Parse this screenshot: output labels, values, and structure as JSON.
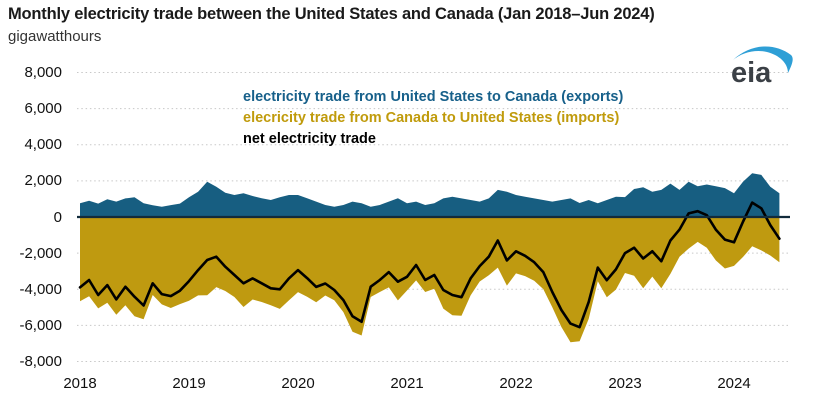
{
  "title": "Monthly electricity trade between the United States and Canada (Jan 2018–Jun 2024)",
  "subtitle": "gigawatthours",
  "logo": {
    "text": "eia",
    "swoosh_color": "#2E9FD6",
    "text_color": "#3B4046"
  },
  "legend": {
    "items": [
      {
        "label": "electricity trade from United States to Canada (exports)",
        "color": "#17608A",
        "series": "exports"
      },
      {
        "label": "elecricity trade from Canada to United States (imports)",
        "color": "#C09B0C",
        "series": "imports"
      },
      {
        "label": "net electricity trade",
        "color": "#000000",
        "series": "net"
      }
    ]
  },
  "colors": {
    "exports_fill": "#175E81",
    "imports_fill": "#BF9A10",
    "net_line": "#000000",
    "zero_line": "#122B3B",
    "grid": "#C8C8C8"
  },
  "chart_data": {
    "type": "area",
    "title": "Monthly electricity trade between the United States and Canada (Jan 2018–Jun 2024)",
    "ylabel": "gigawatthours",
    "x_start": "2018-01",
    "x_end": "2024-06",
    "frequency": "monthly",
    "months_note": "78 monthly values, Jan 2018 through Jun 2024; imports are plotted below zero",
    "ylim": [
      -8000,
      8000
    ],
    "grid": "dotted horizontal",
    "legend_position": "inside top",
    "y_ticks": [
      {
        "value": 8000,
        "label": "8,000"
      },
      {
        "value": 6000,
        "label": "6,000"
      },
      {
        "value": 4000,
        "label": "4,000"
      },
      {
        "value": 2000,
        "label": "2,000"
      },
      {
        "value": 0,
        "label": "0"
      },
      {
        "value": -2000,
        "label": "-2,000"
      },
      {
        "value": -4000,
        "label": "-4,000"
      },
      {
        "value": -6000,
        "label": "-6,000"
      },
      {
        "value": -8000,
        "label": "-8,000"
      }
    ],
    "x_ticks": [
      {
        "label": "2018",
        "month_index": 0
      },
      {
        "label": "2019",
        "month_index": 12
      },
      {
        "label": "2020",
        "month_index": 24
      },
      {
        "label": "2021",
        "month_index": 36
      },
      {
        "label": "2022",
        "month_index": 48
      },
      {
        "label": "2023",
        "month_index": 60
      },
      {
        "label": "2024",
        "month_index": 72
      }
    ],
    "series": [
      {
        "name": "electricity trade from United States to Canada (exports)",
        "plotted_sign": 1,
        "values": [
          760,
          900,
          740,
          980,
          855,
          1030,
          1090,
          760,
          650,
          570,
          660,
          740,
          1090,
          1400,
          1955,
          1680,
          1345,
          1220,
          1310,
          1165,
          1035,
          940,
          1090,
          1220,
          1220,
          1035,
          850,
          665,
          570,
          665,
          850,
          760,
          570,
          665,
          850,
          1035,
          760,
          850,
          665,
          760,
          1030,
          1120,
          1030,
          940,
          850,
          1030,
          1500,
          1400,
          1220,
          1120,
          1030,
          940,
          850,
          940,
          1030,
          775,
          940,
          760,
          940,
          1120,
          1100,
          1550,
          1650,
          1400,
          1500,
          1850,
          1500,
          1950,
          1700,
          1800,
          1700,
          1600,
          1310,
          1960,
          2420,
          2330,
          1680,
          1310
        ]
      },
      {
        "name": "elecricity trade from Canada to United States (imports)",
        "plotted_sign": -1,
        "values": [
          4660,
          4390,
          5060,
          4750,
          5415,
          4890,
          5500,
          5660,
          4320,
          4840,
          5040,
          4820,
          4640,
          4340,
          4335,
          3880,
          4095,
          4430,
          4980,
          4565,
          4705,
          4890,
          5090,
          4620,
          4160,
          4415,
          4720,
          4345,
          4610,
          5265,
          6350,
          6560,
          4430,
          4155,
          3900,
          4615,
          4070,
          3510,
          4155,
          3970,
          5070,
          5440,
          5470,
          4340,
          3570,
          3230,
          2800,
          3800,
          3120,
          3270,
          3530,
          3990,
          5000,
          6090,
          6930,
          6875,
          5640,
          3560,
          4440,
          4020,
          3100,
          3250,
          3950,
          3300,
          3950,
          3150,
          2200,
          1750,
          1380,
          1700,
          2400,
          2850,
          2710,
          2210,
          1620,
          1850,
          2130,
          2510
        ]
      },
      {
        "name": "net electricity trade",
        "plotted_sign": 1,
        "values": [
          -3900,
          -3490,
          -4320,
          -3770,
          -4560,
          -3860,
          -4410,
          -4900,
          -3670,
          -4270,
          -4380,
          -4080,
          -3550,
          -2940,
          -2380,
          -2200,
          -2750,
          -3210,
          -3670,
          -3400,
          -3670,
          -3950,
          -4000,
          -3400,
          -2940,
          -3380,
          -3870,
          -3680,
          -4040,
          -4600,
          -5500,
          -5800,
          -3860,
          -3490,
          -3050,
          -3580,
          -3310,
          -2660,
          -3490,
          -3210,
          -4040,
          -4320,
          -4440,
          -3400,
          -2720,
          -2200,
          -1300,
          -2400,
          -1900,
          -2150,
          -2500,
          -3050,
          -4150,
          -5150,
          -5900,
          -6100,
          -4700,
          -2800,
          -3500,
          -2900,
          -2000,
          -1700,
          -2300,
          -1900,
          -2450,
          -1300,
          -700,
          200,
          320,
          100,
          -700,
          -1250,
          -1400,
          -250,
          800,
          480,
          -450,
          -1200
        ]
      }
    ]
  }
}
